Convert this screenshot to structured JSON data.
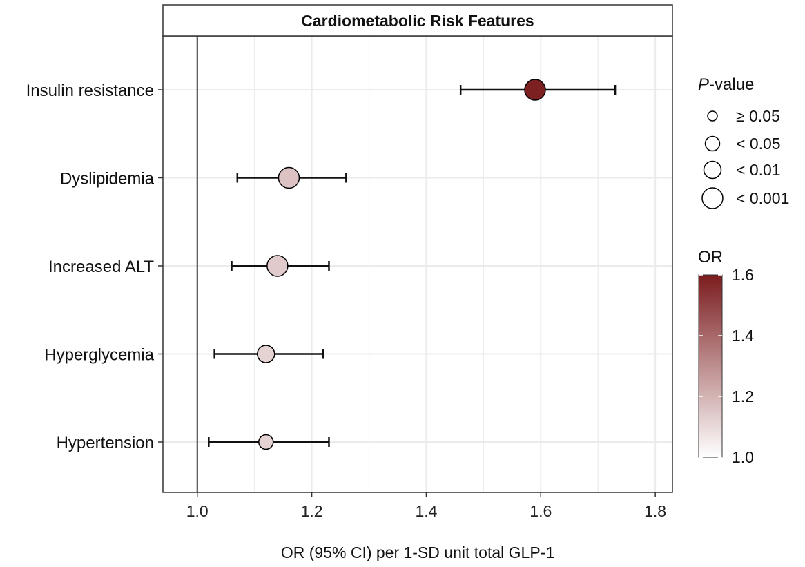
{
  "chart_data": {
    "type": "scatter",
    "subtype": "forest-plot",
    "title": "Cardiometabolic Risk Features",
    "xlabel": "OR (95% CI) per 1-SD unit total GLP-1",
    "ylabel": "",
    "xlim": [
      0.94,
      1.83
    ],
    "xticks": [
      {
        "value": 1.0,
        "label": "1.0"
      },
      {
        "value": 1.2,
        "label": "1.2"
      },
      {
        "value": 1.4,
        "label": "1.4"
      },
      {
        "value": 1.6,
        "label": "1.6"
      },
      {
        "value": 1.8,
        "label": "1.8"
      }
    ],
    "reference_line": 1.0,
    "grid": true,
    "categories": [
      "Insulin resistance",
      "Dyslipidemia",
      "Increased ALT",
      "Hyperglycemia",
      "Hypertension"
    ],
    "points": [
      {
        "label": "Insulin resistance",
        "or": 1.59,
        "ci_low": 1.46,
        "ci_high": 1.73,
        "p_class": "< 0.001"
      },
      {
        "label": "Dyslipidemia",
        "or": 1.16,
        "ci_low": 1.07,
        "ci_high": 1.26,
        "p_class": "< 0.001"
      },
      {
        "label": "Increased ALT",
        "or": 1.14,
        "ci_low": 1.06,
        "ci_high": 1.23,
        "p_class": "< 0.001"
      },
      {
        "label": "Hyperglycemia",
        "or": 1.12,
        "ci_low": 1.03,
        "ci_high": 1.22,
        "p_class": "< 0.01"
      },
      {
        "label": "Hypertension",
        "or": 1.12,
        "ci_low": 1.02,
        "ci_high": 1.23,
        "p_class": "< 0.05"
      }
    ],
    "size_legend": {
      "title_italic": "P",
      "title_rest": "-value",
      "entries": [
        "≥ 0.05",
        "< 0.05",
        "< 0.01",
        "< 0.001"
      ]
    },
    "color_legend": {
      "title": "OR",
      "min": 1.0,
      "max": 1.6,
      "color_low": "#ffffff",
      "color_high": "#7b1c1e",
      "ticks": [
        {
          "value": 1.0,
          "label": "1.0"
        },
        {
          "value": 1.2,
          "label": "1.2"
        },
        {
          "value": 1.4,
          "label": "1.4"
        },
        {
          "value": 1.6,
          "label": "1.6"
        }
      ]
    },
    "colors": {
      "point_outline": "#000000",
      "panel_border": "#333333",
      "grid": "#ebebeb",
      "strip_fill": "#ffffff"
    }
  }
}
